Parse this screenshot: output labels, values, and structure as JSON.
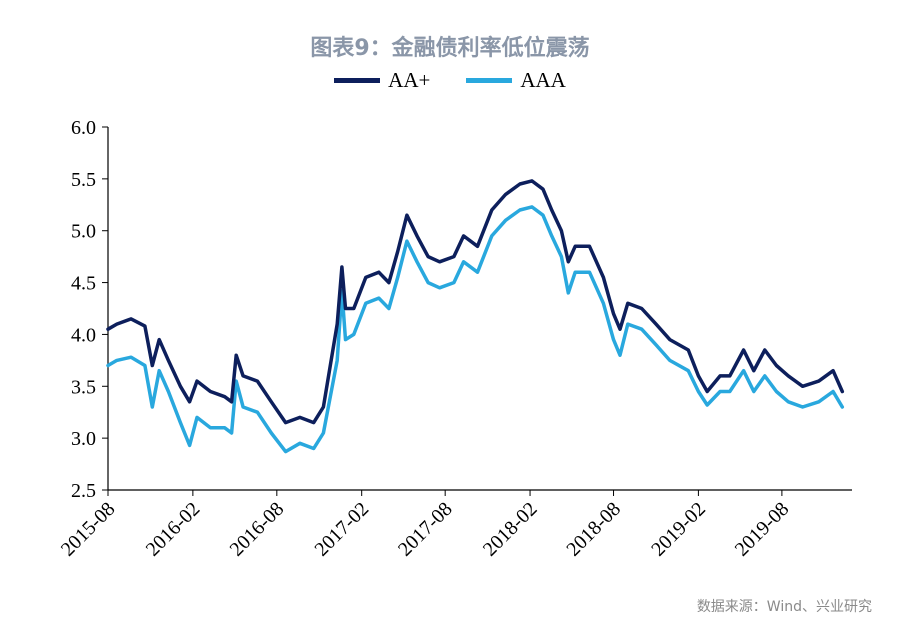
{
  "chart_data": {
    "type": "line",
    "title": "图表9：金融债利率低位震荡",
    "source": "数据来源：Wind、兴业研究",
    "ylim": [
      2.5,
      6.0
    ],
    "y_ticks": [
      "2.5",
      "3.0",
      "3.5",
      "4.0",
      "4.5",
      "5.0",
      "5.5",
      "6.0"
    ],
    "x_range": [
      "2015-08-01",
      "2019-12-31"
    ],
    "x_ticks": [
      "2015-08",
      "2016-02",
      "2016-08",
      "2017-02",
      "2017-08",
      "2018-02",
      "2018-08",
      "2019-02",
      "2019-08"
    ],
    "grid": false,
    "legend_position": "top-center",
    "series": [
      {
        "name": "AA+",
        "color": "#0d1f5c",
        "points": [
          [
            "2015-08-01",
            4.05
          ],
          [
            "2015-08-20",
            4.1
          ],
          [
            "2015-09-20",
            4.15
          ],
          [
            "2015-10-20",
            4.08
          ],
          [
            "2015-11-05",
            3.7
          ],
          [
            "2015-11-20",
            3.95
          ],
          [
            "2015-12-10",
            3.75
          ],
          [
            "2016-01-05",
            3.5
          ],
          [
            "2016-01-25",
            3.35
          ],
          [
            "2016-02-10",
            3.55
          ],
          [
            "2016-03-10",
            3.45
          ],
          [
            "2016-04-10",
            3.4
          ],
          [
            "2016-04-25",
            3.35
          ],
          [
            "2016-05-05",
            3.8
          ],
          [
            "2016-05-20",
            3.6
          ],
          [
            "2016-06-20",
            3.55
          ],
          [
            "2016-07-20",
            3.35
          ],
          [
            "2016-08-20",
            3.15
          ],
          [
            "2016-09-20",
            3.2
          ],
          [
            "2016-10-20",
            3.15
          ],
          [
            "2016-11-10",
            3.3
          ],
          [
            "2016-11-25",
            3.7
          ],
          [
            "2016-12-10",
            4.1
          ],
          [
            "2016-12-20",
            4.65
          ],
          [
            "2016-12-28",
            4.25
          ],
          [
            "2017-01-15",
            4.25
          ],
          [
            "2017-02-10",
            4.55
          ],
          [
            "2017-03-10",
            4.6
          ],
          [
            "2017-04-01",
            4.5
          ],
          [
            "2017-04-20",
            4.8
          ],
          [
            "2017-05-10",
            5.15
          ],
          [
            "2017-06-01",
            4.95
          ],
          [
            "2017-06-25",
            4.75
          ],
          [
            "2017-07-20",
            4.7
          ],
          [
            "2017-08-20",
            4.75
          ],
          [
            "2017-09-10",
            4.95
          ],
          [
            "2017-10-10",
            4.85
          ],
          [
            "2017-11-10",
            5.2
          ],
          [
            "2017-12-10",
            5.35
          ],
          [
            "2018-01-10",
            5.45
          ],
          [
            "2018-02-05",
            5.48
          ],
          [
            "2018-03-01",
            5.4
          ],
          [
            "2018-03-20",
            5.2
          ],
          [
            "2018-04-10",
            5.0
          ],
          [
            "2018-04-25",
            4.7
          ],
          [
            "2018-05-10",
            4.85
          ],
          [
            "2018-06-10",
            4.85
          ],
          [
            "2018-07-10",
            4.55
          ],
          [
            "2018-08-01",
            4.2
          ],
          [
            "2018-08-15",
            4.05
          ],
          [
            "2018-09-01",
            4.3
          ],
          [
            "2018-10-01",
            4.25
          ],
          [
            "2018-11-01",
            4.1
          ],
          [
            "2018-12-01",
            3.95
          ],
          [
            "2019-01-10",
            3.85
          ],
          [
            "2019-02-01",
            3.6
          ],
          [
            "2019-02-20",
            3.45
          ],
          [
            "2019-03-20",
            3.6
          ],
          [
            "2019-04-10",
            3.6
          ],
          [
            "2019-05-10",
            3.85
          ],
          [
            "2019-06-01",
            3.65
          ],
          [
            "2019-06-25",
            3.85
          ],
          [
            "2019-07-20",
            3.7
          ],
          [
            "2019-08-15",
            3.6
          ],
          [
            "2019-09-15",
            3.5
          ],
          [
            "2019-10-20",
            3.55
          ],
          [
            "2019-11-20",
            3.65
          ],
          [
            "2019-12-10",
            3.45
          ]
        ]
      },
      {
        "name": "AAA",
        "color": "#29a8de",
        "points": [
          [
            "2015-08-01",
            3.7
          ],
          [
            "2015-08-20",
            3.75
          ],
          [
            "2015-09-20",
            3.78
          ],
          [
            "2015-10-20",
            3.7
          ],
          [
            "2015-11-05",
            3.3
          ],
          [
            "2015-11-20",
            3.65
          ],
          [
            "2015-12-10",
            3.45
          ],
          [
            "2016-01-05",
            3.15
          ],
          [
            "2016-01-25",
            2.93
          ],
          [
            "2016-02-10",
            3.2
          ],
          [
            "2016-03-10",
            3.1
          ],
          [
            "2016-04-10",
            3.1
          ],
          [
            "2016-04-25",
            3.05
          ],
          [
            "2016-05-05",
            3.55
          ],
          [
            "2016-05-20",
            3.3
          ],
          [
            "2016-06-20",
            3.25
          ],
          [
            "2016-07-20",
            3.05
          ],
          [
            "2016-08-20",
            2.87
          ],
          [
            "2016-09-20",
            2.95
          ],
          [
            "2016-10-20",
            2.9
          ],
          [
            "2016-11-10",
            3.05
          ],
          [
            "2016-11-25",
            3.4
          ],
          [
            "2016-12-10",
            3.75
          ],
          [
            "2016-12-20",
            4.42
          ],
          [
            "2016-12-28",
            3.95
          ],
          [
            "2017-01-15",
            4.0
          ],
          [
            "2017-02-10",
            4.3
          ],
          [
            "2017-03-10",
            4.35
          ],
          [
            "2017-04-01",
            4.25
          ],
          [
            "2017-04-20",
            4.55
          ],
          [
            "2017-05-10",
            4.9
          ],
          [
            "2017-06-01",
            4.7
          ],
          [
            "2017-06-25",
            4.5
          ],
          [
            "2017-07-20",
            4.45
          ],
          [
            "2017-08-20",
            4.5
          ],
          [
            "2017-09-10",
            4.7
          ],
          [
            "2017-10-10",
            4.6
          ],
          [
            "2017-11-10",
            4.95
          ],
          [
            "2017-12-10",
            5.1
          ],
          [
            "2018-01-10",
            5.2
          ],
          [
            "2018-02-05",
            5.23
          ],
          [
            "2018-03-01",
            5.15
          ],
          [
            "2018-03-20",
            4.95
          ],
          [
            "2018-04-10",
            4.75
          ],
          [
            "2018-04-25",
            4.4
          ],
          [
            "2018-05-10",
            4.6
          ],
          [
            "2018-06-10",
            4.6
          ],
          [
            "2018-07-10",
            4.3
          ],
          [
            "2018-08-01",
            3.95
          ],
          [
            "2018-08-15",
            3.8
          ],
          [
            "2018-09-01",
            4.1
          ],
          [
            "2018-10-01",
            4.05
          ],
          [
            "2018-11-01",
            3.9
          ],
          [
            "2018-12-01",
            3.75
          ],
          [
            "2019-01-10",
            3.65
          ],
          [
            "2019-02-01",
            3.45
          ],
          [
            "2019-02-20",
            3.32
          ],
          [
            "2019-03-20",
            3.45
          ],
          [
            "2019-04-10",
            3.45
          ],
          [
            "2019-05-10",
            3.65
          ],
          [
            "2019-06-01",
            3.45
          ],
          [
            "2019-06-25",
            3.6
          ],
          [
            "2019-07-20",
            3.45
          ],
          [
            "2019-08-15",
            3.35
          ],
          [
            "2019-09-15",
            3.3
          ],
          [
            "2019-10-20",
            3.35
          ],
          [
            "2019-11-20",
            3.45
          ],
          [
            "2019-12-10",
            3.3
          ]
        ]
      }
    ]
  }
}
